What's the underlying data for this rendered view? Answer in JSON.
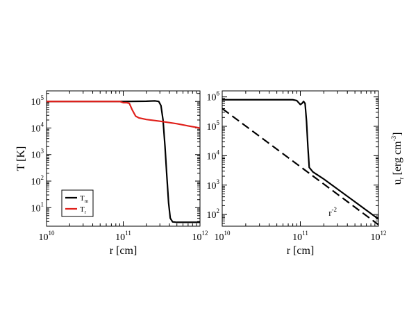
{
  "chart_data": [
    {
      "type": "line",
      "title": "",
      "xlabel": "r [cm]",
      "ylabel": "T [K]",
      "xscale": "log",
      "yscale": "log",
      "xlim": [
        10000000000.0,
        1000000000000.0
      ],
      "ylim": [
        2,
        250000.0
      ],
      "x_ticks": [
        {
          "base": "10",
          "exp": "10",
          "value": 10000000000.0
        },
        {
          "base": "10",
          "exp": "11",
          "value": 100000000000.0
        },
        {
          "base": "10",
          "exp": "12",
          "value": 1000000000000.0
        }
      ],
      "y_ticks": [
        {
          "base": "10",
          "exp": "1",
          "value": 10.0
        },
        {
          "base": "10",
          "exp": "2",
          "value": 100.0
        },
        {
          "base": "10",
          "exp": "3",
          "value": 1000.0
        },
        {
          "base": "10",
          "exp": "4",
          "value": 10000.0
        },
        {
          "base": "10",
          "exp": "5",
          "value": 100000.0
        }
      ],
      "legend": {
        "placement": "bottom-left",
        "entries": [
          {
            "label": "T",
            "sub": "m",
            "color": "#000000"
          },
          {
            "label": "T",
            "sub": "r",
            "color": "#e0201b"
          }
        ]
      },
      "series": [
        {
          "name": "Tm",
          "color": "#000000",
          "style": "solid",
          "x": [
            10000000000.0,
            50000000000.0,
            100000000000.0,
            200000000000.0,
            260000000000.0,
            290000000000.0,
            310000000000.0,
            330000000000.0,
            350000000000.0,
            370000000000.0,
            390000000000.0,
            410000000000.0,
            440000000000.0,
            500000000000.0,
            700000000000.0,
            1000000000000.0
          ],
          "y": [
            100000.0,
            100000.0,
            100000.0,
            102000.0,
            105000.0,
            100000.0,
            70000.0,
            20000.0,
            2000,
            150,
            15,
            4,
            2.9,
            2.8,
            2.8,
            2.8
          ]
        },
        {
          "name": "Tr",
          "color": "#e0201b",
          "style": "solid",
          "x": [
            10000000000.0,
            50000000000.0,
            90000000000.0,
            100000000000.0,
            110000000000.0,
            120000000000.0,
            130000000000.0,
            145000000000.0,
            160000000000.0,
            200000000000.0,
            300000000000.0,
            500000000000.0,
            700000000000.0,
            1000000000000.0
          ],
          "y": [
            100000.0,
            100000.0,
            100000.0,
            90000.0,
            90000.0,
            85000.0,
            50000.0,
            28000.0,
            24000.0,
            21000.0,
            18000.0,
            14500.0,
            12000.0,
            10000.0
          ]
        }
      ]
    },
    {
      "type": "line",
      "title": "",
      "xlabel": "r [cm]",
      "ylabel": "u",
      "ylabel_sub": "r",
      "ylabel_units": "[erg cm",
      "ylabel_units_exp": "-3",
      "ylabel_units_close": "]",
      "xscale": "log",
      "yscale": "log",
      "xlim": [
        10000000000.0,
        1000000000000.0
      ],
      "ylim": [
        40,
        1600000.0
      ],
      "x_ticks": [
        {
          "base": "10",
          "exp": "10",
          "value": 10000000000.0
        },
        {
          "base": "10",
          "exp": "11",
          "value": 100000000000.0
        },
        {
          "base": "10",
          "exp": "12",
          "value": 1000000000000.0
        }
      ],
      "y_ticks": [
        {
          "base": "10",
          "exp": "2",
          "value": 100.0
        },
        {
          "base": "10",
          "exp": "3",
          "value": 1000.0
        },
        {
          "base": "10",
          "exp": "4",
          "value": 10000.0
        },
        {
          "base": "10",
          "exp": "5",
          "value": 100000.0
        },
        {
          "base": "10",
          "exp": "6",
          "value": 1000000.0
        }
      ],
      "annotations": [
        {
          "text": "r",
          "sup": "-2",
          "x": 230000000000.0,
          "y": 90
        }
      ],
      "series": [
        {
          "name": "ur",
          "color": "#000000",
          "style": "solid",
          "x": [
            10000000000.0,
            50000000000.0,
            80000000000.0,
            90000000000.0,
            100000000000.0,
            105000000000.0,
            110000000000.0,
            115000000000.0,
            120000000000.0,
            125000000000.0,
            130000000000.0,
            145000000000.0,
            200000000000.0,
            500000000000.0,
            1000000000000.0
          ],
          "y": [
            800000.0,
            800000.0,
            800000.0,
            750000.0,
            550000.0,
            600000.0,
            700000.0,
            600000.0,
            150000.0,
            20000.0,
            4000,
            2800,
            1600,
            270,
            70
          ]
        },
        {
          "name": "r-2",
          "color": "#000000",
          "style": "dashed",
          "x": [
            10000000000.0,
            1000000000000.0
          ],
          "y": [
            400000.0,
            45
          ]
        }
      ]
    }
  ]
}
